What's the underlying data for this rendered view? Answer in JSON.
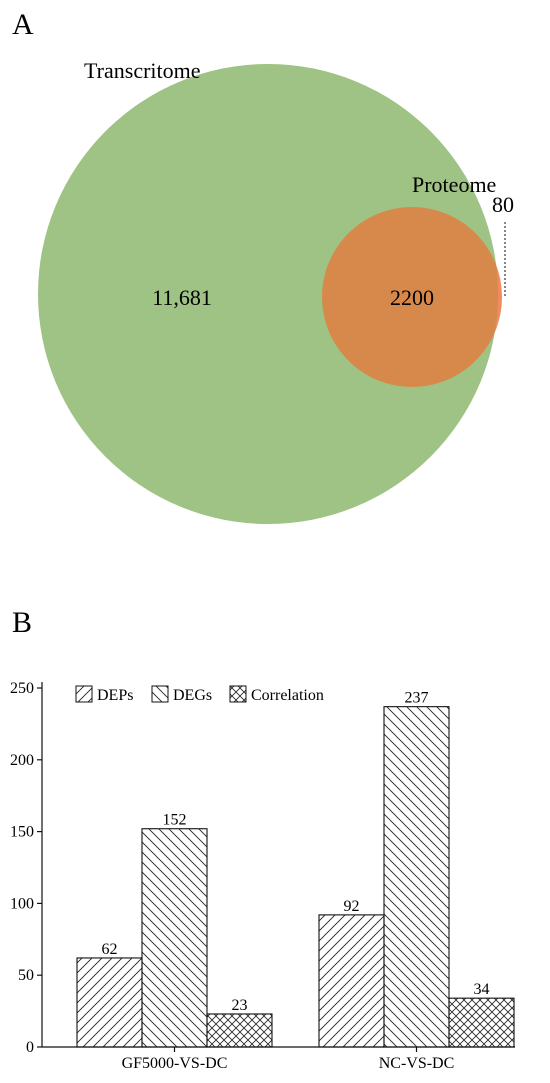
{
  "panel_a": {
    "letter": "A",
    "sets": [
      {
        "name": "Transcritome",
        "color": "#9ec384"
      },
      {
        "name": "Proteome",
        "color": "#f08a60"
      }
    ],
    "counts": {
      "transcriptome_only": "11,681",
      "overlap": "2200",
      "proteome_only": "80"
    },
    "overlap_color": "#d6894b"
  },
  "panel_b": {
    "letter": "B"
  },
  "chart_data": [
    {
      "type": "venn",
      "sets": [
        "Transcritome",
        "Proteome"
      ],
      "regions": {
        "Transcritome only": 11681,
        "both": 2200,
        "Proteome only": 80
      }
    },
    {
      "type": "bar",
      "categories": [
        "GF5000-VS-DC",
        "NC-VS-DC"
      ],
      "series": [
        {
          "name": "DEPs",
          "values": [
            62,
            92
          ],
          "pattern": "forward-hatch"
        },
        {
          "name": "DEGs",
          "values": [
            152,
            237
          ],
          "pattern": "back-hatch"
        },
        {
          "name": "Correlation",
          "values": [
            23,
            34
          ],
          "pattern": "crosshatch"
        }
      ],
      "ylim": [
        0,
        250
      ],
      "yticks": [
        0,
        50,
        100,
        150,
        200,
        250
      ],
      "legend": "top-left",
      "grid": false
    }
  ]
}
